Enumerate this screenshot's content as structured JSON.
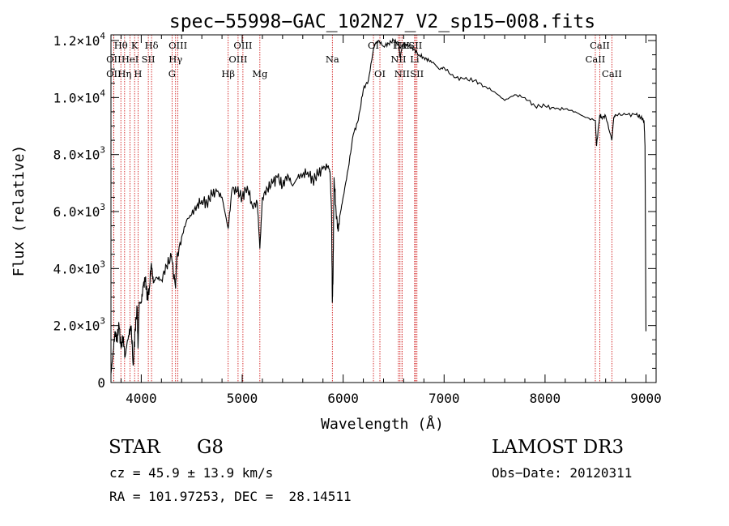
{
  "chart_data": {
    "type": "line",
    "title": "spec−55998−GAC_102N27_V2_sp15−008.fits",
    "xlabel": "Wavelength (Å)",
    "ylabel": "Flux (relative)",
    "xlim": [
      3700,
      9100
    ],
    "ylim": [
      0,
      12200
    ],
    "xticks": [
      {
        "value": 4000,
        "label": "4000"
      },
      {
        "value": 5000,
        "label": "5000"
      },
      {
        "value": 6000,
        "label": "6000"
      },
      {
        "value": 7000,
        "label": "7000"
      },
      {
        "value": 8000,
        "label": "8000"
      },
      {
        "value": 9000,
        "label": "9000"
      }
    ],
    "yticks": [
      {
        "value": 0,
        "mant": "0",
        "exp": ""
      },
      {
        "value": 2000,
        "mant": "2.0×10",
        "exp": "3"
      },
      {
        "value": 4000,
        "mant": "4.0×10",
        "exp": "3"
      },
      {
        "value": 6000,
        "mant": "6.0×10",
        "exp": "3"
      },
      {
        "value": 8000,
        "mant": "8.0×10",
        "exp": "3"
      },
      {
        "value": 10000,
        "mant": "1.0×10",
        "exp": "4"
      },
      {
        "value": 12000,
        "mant": "1.2×10",
        "exp": "4"
      }
    ],
    "spectrum": {
      "name": "flux",
      "x": [
        3700,
        3720,
        3740,
        3760,
        3780,
        3800,
        3820,
        3840,
        3860,
        3880,
        3900,
        3920,
        3940,
        3960,
        3968,
        3980,
        4000,
        4020,
        4040,
        4060,
        4080,
        4100,
        4120,
        4150,
        4200,
        4250,
        4300,
        4340,
        4350,
        4400,
        4450,
        4500,
        4550,
        4600,
        4650,
        4700,
        4750,
        4800,
        4861,
        4900,
        4950,
        5000,
        5050,
        5100,
        5150,
        5175,
        5200,
        5250,
        5300,
        5350,
        5400,
        5450,
        5500,
        5550,
        5600,
        5650,
        5700,
        5750,
        5800,
        5850,
        5870,
        5885,
        5893,
        5900,
        5910,
        5930,
        5950,
        5970,
        6000,
        6050,
        6100,
        6150,
        6200,
        6250,
        6300,
        6320,
        6350,
        6400,
        6450,
        6500,
        6550,
        6563,
        6580,
        6600,
        6650,
        6700,
        6750,
        6800,
        6850,
        6900,
        6950,
        7000,
        7100,
        7200,
        7300,
        7400,
        7500,
        7600,
        7700,
        7800,
        7900,
        8000,
        8100,
        8200,
        8300,
        8400,
        8498,
        8510,
        8542,
        8560,
        8600,
        8662,
        8680,
        8700,
        8800,
        8900,
        8950,
        8980,
        8990,
        9000
      ],
      "y": [
        300,
        1000,
        1800,
        1500,
        2000,
        1200,
        1600,
        900,
        1400,
        1700,
        2000,
        600,
        1900,
        2600,
        1200,
        2800,
        2800,
        3400,
        3600,
        3000,
        3300,
        4200,
        3500,
        3700,
        3600,
        4100,
        4400,
        3300,
        4300,
        5100,
        5700,
        5900,
        6200,
        6400,
        6300,
        6600,
        6700,
        6500,
        5400,
        6800,
        6700,
        6500,
        6900,
        6200,
        6300,
        4700,
        6500,
        6800,
        7000,
        7200,
        6900,
        7300,
        6900,
        7200,
        7300,
        7400,
        7100,
        7300,
        7500,
        7600,
        7400,
        6000,
        2800,
        3800,
        7200,
        6000,
        5300,
        5900,
        6500,
        7500,
        8700,
        9200,
        10300,
        10600,
        11700,
        11900,
        12000,
        11800,
        11900,
        12000,
        11900,
        11400,
        11700,
        11900,
        11800,
        11700,
        11500,
        11400,
        11300,
        11200,
        11000,
        11050,
        10700,
        10650,
        10600,
        10400,
        10200,
        9900,
        10100,
        10000,
        9700,
        9700,
        9600,
        9600,
        9500,
        9300,
        9200,
        8300,
        9400,
        9300,
        9350,
        8500,
        9300,
        9400,
        9400,
        9400,
        9300,
        9200,
        8300,
        1800
      ]
    },
    "lines": [
      {
        "name": "OII",
        "x": 3727,
        "row": 1
      },
      {
        "name": "Hθ",
        "x": 3798,
        "row": 0
      },
      {
        "name": "OII",
        "x": 3727,
        "row": 2
      },
      {
        "name": "Hη",
        "x": 3835,
        "row": 2
      },
      {
        "name": "HeI",
        "x": 3889,
        "row": 1
      },
      {
        "name": "K",
        "x": 3934,
        "row": 0
      },
      {
        "name": "SII",
        "x": 4070,
        "row": 1
      },
      {
        "name": "H",
        "x": 3968,
        "row": 2
      },
      {
        "name": "Hδ",
        "x": 4102,
        "row": 0
      },
      {
        "name": "OIII",
        "x": 4363,
        "row": 0
      },
      {
        "name": "Hγ",
        "x": 4340,
        "row": 1
      },
      {
        "name": "G",
        "x": 4305,
        "row": 2
      },
      {
        "name": "OIII",
        "x": 5007,
        "row": 0
      },
      {
        "name": "OIII",
        "x": 4959,
        "row": 1
      },
      {
        "name": "Hβ",
        "x": 4861,
        "row": 2
      },
      {
        "name": "Mg",
        "x": 5175,
        "row": 2
      },
      {
        "name": "Na",
        "x": 5893,
        "row": 1
      },
      {
        "name": "OI",
        "x": 6300,
        "row": 0
      },
      {
        "name": "OI",
        "x": 6364,
        "row": 2
      },
      {
        "name": "NII",
        "x": 6548,
        "row": 1
      },
      {
        "name": "NII",
        "x": 6583,
        "row": 2
      },
      {
        "name": "Hα",
        "x": 6563,
        "row": 0
      },
      {
        "name": "NII",
        "x": 6583,
        "row": 0
      },
      {
        "name": "SII",
        "x": 6716,
        "row": 0
      },
      {
        "name": "Li",
        "x": 6708,
        "row": 1
      },
      {
        "name": "SII",
        "x": 6731,
        "row": 2
      },
      {
        "name": "CaII",
        "x": 8498,
        "row": 1
      },
      {
        "name": "CaII",
        "x": 8542,
        "row": 0
      },
      {
        "name": "CaII",
        "x": 8662,
        "row": 2
      }
    ]
  },
  "info": {
    "class": "STAR",
    "subclass": "G8",
    "survey": "LAMOST DR3",
    "cz": "cz = 45.9 ± 13.9 km/s",
    "obs_date": "Obs−Date: 20120311",
    "coords": "RA = 101.97253, DEC =  28.14511"
  },
  "colors": {
    "axis": "#000000",
    "spectrum": "#000000",
    "line_marker": "#cc0000"
  }
}
